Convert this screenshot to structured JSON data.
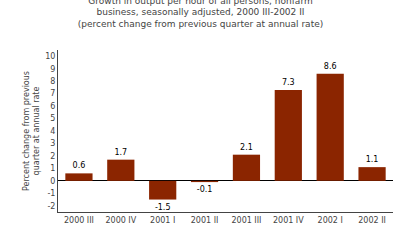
{
  "chart_data": {
    "type": "bar",
    "title": "Growth in output per hour of all persons, nonfarm\nbusiness, seasonally adjusted, 2000 III-2002 II\n(percent change from previous quarter at annual rate)",
    "ylabel": "Percent change from previous\nquarter at annual rate",
    "categories": [
      "2000 III",
      "2000 IV",
      "2001 I",
      "2001 II",
      "2001 III",
      "2001 IV",
      "2002 I",
      "2002 II"
    ],
    "values": [
      0.6,
      1.7,
      -1.5,
      -0.1,
      2.1,
      7.3,
      8.6,
      1.1
    ],
    "color": "#8B2500",
    "ylim": [
      -2.5,
      10.5
    ],
    "yticks": [
      -2,
      -1,
      0,
      1,
      2,
      3,
      4,
      5,
      6,
      7,
      8,
      9,
      10
    ],
    "data_labels": true,
    "grid": false
  }
}
